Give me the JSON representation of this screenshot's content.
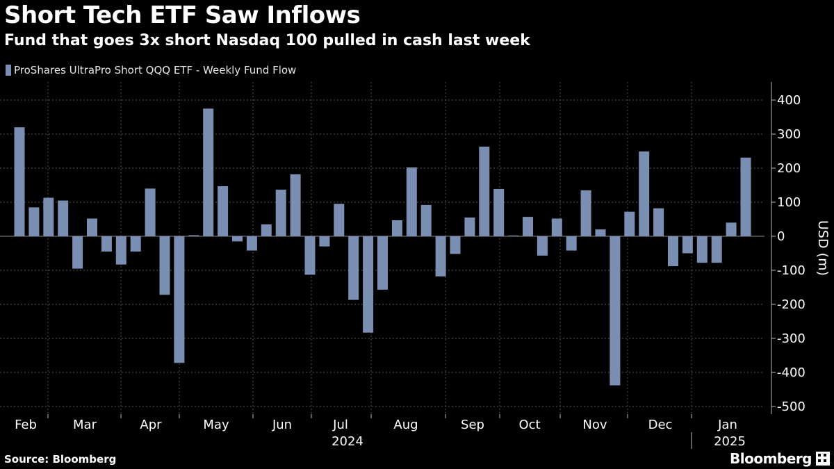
{
  "header": {
    "title": "Short Tech ETF Saw Inflows",
    "subtitle": "Fund that goes 3x short Nasdaq 100 pulled in cash last week"
  },
  "legend": {
    "label": "ProShares UltraPro Short QQQ ETF - Weekly Fund Flow",
    "color": "#7b8fb3"
  },
  "footer": {
    "source": "Source: Bloomberg",
    "brand": "Bloomberg"
  },
  "chart_data": {
    "type": "bar",
    "title": "Short Tech ETF Saw Inflows",
    "subtitle": "Fund that goes 3x short Nasdaq 100 pulled in cash last week",
    "ylabel": "USD (m)",
    "xlabel": "",
    "ylim": [
      -500,
      450
    ],
    "yticks": [
      400,
      300,
      200,
      100,
      0,
      -100,
      -200,
      -300,
      -400,
      -500
    ],
    "ytick_labels": [
      "400",
      "300",
      "200",
      "100",
      "0",
      "-100",
      "-200",
      "-300",
      "-400",
      "-500"
    ],
    "month_labels": [
      "Feb",
      "Mar",
      "Apr",
      "May",
      "Jun",
      "Jul",
      "Aug",
      "Sep",
      "Oct",
      "Nov",
      "Dec",
      "Jan"
    ],
    "year_labels": [
      "2024",
      "2025"
    ],
    "grid": true,
    "legend_position": "top-left",
    "bar_color": "#7b8fb3",
    "series": [
      {
        "name": "ProShares UltraPro Short QQQ ETF - Weekly Fund Flow",
        "values": [
          320,
          85,
          113,
          105,
          -95,
          52,
          -45,
          -83,
          -45,
          140,
          -172,
          -372,
          3,
          375,
          147,
          -15,
          -42,
          35,
          137,
          182,
          -113,
          -30,
          95,
          -187,
          -283,
          -157,
          47,
          202,
          92,
          -118,
          -52,
          55,
          263,
          139,
          2,
          57,
          -57,
          52,
          -42,
          135,
          20,
          -438,
          72,
          249,
          82,
          -88,
          -50,
          -78,
          -78,
          40,
          231
        ]
      }
    ]
  }
}
